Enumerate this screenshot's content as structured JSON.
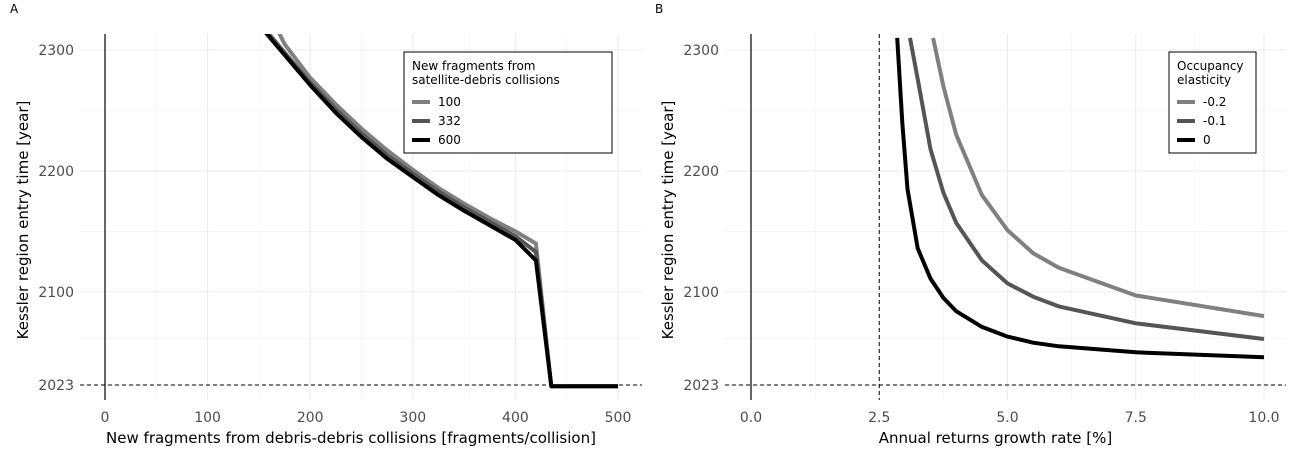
{
  "chart_data": [
    {
      "panel_label": "A",
      "type": "line",
      "xlabel": "New fragments from debris-debris collisions [fragments/collision]",
      "ylabel": "Kessler region entry time [year]",
      "xlim": [
        0,
        500
      ],
      "ylim": [
        2023,
        2300
      ],
      "x_ticks": [
        "0",
        "100",
        "200",
        "300",
        "400",
        "500"
      ],
      "y_ticks": [
        "2023",
        "2100",
        "2200",
        "2300"
      ],
      "reference_line_y": 2023,
      "reference_line_x": null,
      "grid": true,
      "legend": {
        "title": "New fragments from satellite-debris collisions",
        "title_lines": [
          "New fragments from",
          "satellite-debris collisions"
        ],
        "placement": "top-right"
      },
      "series": [
        {
          "name": "100",
          "color": "#808080",
          "x": [
            155,
            175,
            200,
            225,
            250,
            275,
            300,
            325,
            350,
            375,
            400,
            420,
            435,
            500
          ],
          "y": [
            2340,
            2305,
            2277,
            2255,
            2235,
            2217,
            2201,
            2186,
            2173,
            2161,
            2150,
            2140,
            2022,
            2022
          ]
        },
        {
          "name": "332",
          "color": "#555555",
          "x": [
            155,
            175,
            200,
            225,
            250,
            275,
            300,
            325,
            350,
            375,
            400,
            420,
            435,
            500
          ],
          "y": [
            2318,
            2298,
            2273,
            2251,
            2231,
            2213,
            2198,
            2183,
            2170,
            2158,
            2146,
            2133,
            2022,
            2022
          ]
        },
        {
          "name": "600",
          "color": "#000000",
          "x": [
            155,
            175,
            200,
            225,
            250,
            275,
            300,
            325,
            350,
            375,
            400,
            420,
            435,
            500
          ],
          "y": [
            2316,
            2296,
            2271,
            2248,
            2228,
            2210,
            2195,
            2180,
            2167,
            2155,
            2143,
            2126,
            2022,
            2022
          ]
        }
      ]
    },
    {
      "panel_label": "B",
      "type": "line",
      "xlabel": "Annual returns growth rate [%]",
      "ylabel": "Kessler region entry time [year]",
      "xlim": [
        0,
        10
      ],
      "ylim": [
        2023,
        2300
      ],
      "x_ticks": [
        "0.0",
        "2.5",
        "5.0",
        "7.5",
        "10.0"
      ],
      "y_ticks": [
        "2023",
        "2100",
        "2200",
        "2300"
      ],
      "reference_line_y": 2023,
      "reference_line_x": 2.5,
      "grid": true,
      "legend": {
        "title": "Occupancy elasticity",
        "title_lines": [
          "Occupancy",
          "elasticity"
        ],
        "placement": "top-right"
      },
      "series": [
        {
          "name": "-0.2",
          "color": "#808080",
          "x": [
            3.55,
            3.75,
            4.0,
            4.5,
            5.0,
            5.5,
            6.0,
            7.5,
            10.0
          ],
          "y": [
            2310,
            2270,
            2230,
            2180,
            2151,
            2132,
            2120,
            2097,
            2080
          ]
        },
        {
          "name": "-0.1",
          "color": "#555555",
          "x": [
            3.1,
            3.25,
            3.5,
            3.75,
            4.0,
            4.5,
            5.0,
            5.5,
            6.0,
            7.5,
            10.0
          ],
          "y": [
            2310,
            2276,
            2218,
            2182,
            2157,
            2126,
            2107,
            2096,
            2088,
            2074,
            2061
          ]
        },
        {
          "name": "0",
          "color": "#000000",
          "x": [
            2.85,
            2.95,
            3.05,
            3.25,
            3.5,
            3.75,
            4.0,
            4.5,
            5.0,
            5.5,
            6.0,
            7.5,
            10.0
          ],
          "y": [
            2310,
            2240,
            2185,
            2136,
            2111,
            2095,
            2084,
            2071,
            2063,
            2058,
            2055,
            2050,
            2046
          ]
        }
      ]
    }
  ]
}
